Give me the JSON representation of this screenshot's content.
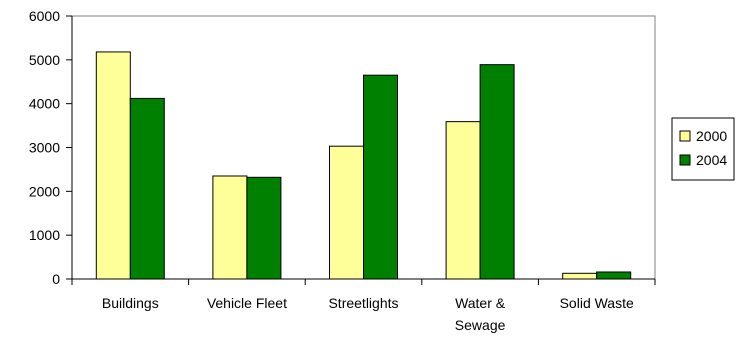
{
  "chart_data": {
    "type": "bar",
    "title": "",
    "xlabel": "",
    "ylabel": "",
    "ylim": [
      0,
      6000
    ],
    "yticks": [
      0,
      1000,
      2000,
      3000,
      4000,
      5000,
      6000
    ],
    "categories": [
      [
        "Buildings"
      ],
      [
        "Vehicle Fleet"
      ],
      [
        "Streetlights"
      ],
      [
        "Water &",
        "Sewage"
      ],
      [
        "Solid Waste"
      ]
    ],
    "series": [
      {
        "name": "2000",
        "color": "#ffff99",
        "values": [
          5180,
          2350,
          3030,
          3590,
          130
        ]
      },
      {
        "name": "2004",
        "color": "#008000",
        "values": [
          4120,
          2320,
          4650,
          4890,
          160
        ]
      }
    ],
    "legend": {
      "position": "right"
    },
    "grid": false
  }
}
